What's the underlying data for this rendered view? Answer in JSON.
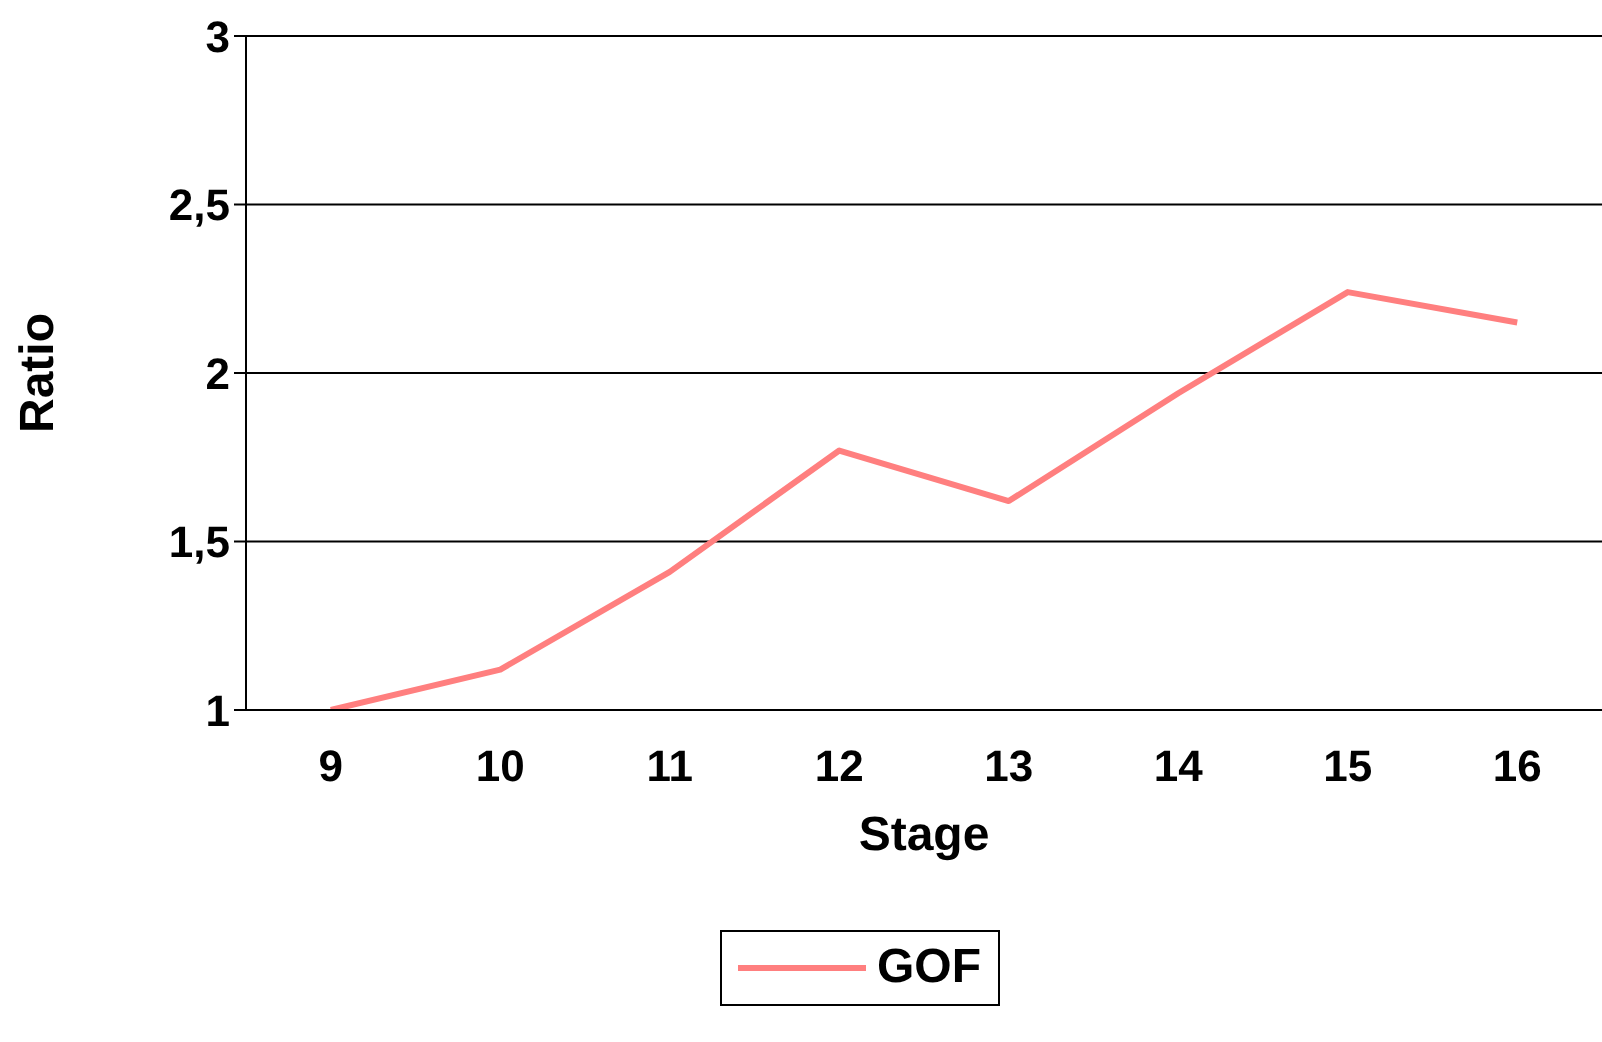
{
  "chart_data": {
    "type": "line",
    "xlabel": "Stage",
    "ylabel": "Ratio",
    "categories": [
      "9",
      "10",
      "11",
      "12",
      "13",
      "14",
      "15",
      "16"
    ],
    "series": [
      {
        "name": "GOF",
        "color": "#ff7f7f",
        "values": [
          1.0,
          1.12,
          1.41,
          1.77,
          1.62,
          1.94,
          2.24,
          2.15
        ]
      }
    ],
    "ylim": [
      1,
      3
    ],
    "yticks": [
      1,
      {
        "value": 1.5,
        "label": "1,5"
      },
      2,
      {
        "value": 2.5,
        "label": "2,5"
      },
      3
    ],
    "grid": "y",
    "legend": "bottom",
    "marker": "none",
    "line_style": "solid"
  }
}
